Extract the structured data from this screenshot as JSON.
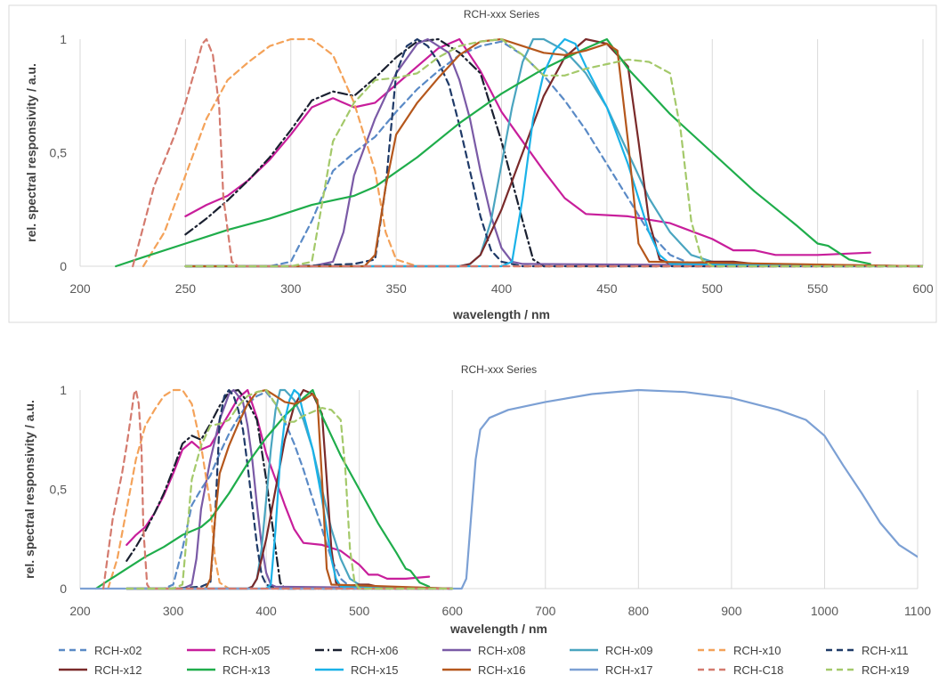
{
  "chart_data": [
    {
      "type": "line",
      "title": "RCH-xxx Series",
      "xlabel": "wavelength / nm",
      "ylabel": "rel. spectral responsivity / a.u.",
      "xlim": [
        200,
        600
      ],
      "ylim": [
        0,
        1
      ],
      "x_ticks": [
        "200",
        "250",
        "300",
        "350",
        "400",
        "450",
        "500",
        "550",
        "600"
      ],
      "y_ticks": [
        "0",
        "0,5",
        "1"
      ],
      "grid": "vertical",
      "legend": "none"
    },
    {
      "type": "line",
      "title": "RCH-xxx Series",
      "xlabel": "wavelength / nm",
      "ylabel": "rel. spectral responsivity / a.u.",
      "xlim": [
        200,
        1100
      ],
      "ylim": [
        0,
        1
      ],
      "x_ticks": [
        "200",
        "300",
        "400",
        "500",
        "600",
        "700",
        "800",
        "900",
        "1000",
        "1100"
      ],
      "y_ticks": [
        "0",
        "0,5",
        "1"
      ],
      "grid": "vertical",
      "legend": "bottom"
    }
  ],
  "series": [
    {
      "name": "RCH-x02",
      "color": "#5a8ac6",
      "dash": "dash",
      "points": [
        [
          250,
          0
        ],
        [
          290,
          0
        ],
        [
          300,
          0.02
        ],
        [
          310,
          0.2
        ],
        [
          320,
          0.42
        ],
        [
          330,
          0.5
        ],
        [
          340,
          0.57
        ],
        [
          350,
          0.68
        ],
        [
          360,
          0.78
        ],
        [
          370,
          0.86
        ],
        [
          380,
          0.93
        ],
        [
          390,
          0.97
        ],
        [
          400,
          0.99
        ],
        [
          410,
          0.93
        ],
        [
          420,
          0.84
        ],
        [
          430,
          0.73
        ],
        [
          440,
          0.6
        ],
        [
          450,
          0.45
        ],
        [
          460,
          0.3
        ],
        [
          470,
          0.15
        ],
        [
          480,
          0.05
        ],
        [
          490,
          0.01
        ],
        [
          500,
          0
        ],
        [
          600,
          0
        ]
      ]
    },
    {
      "name": "RCH-x05",
      "color": "#c81e9b",
      "dash": "solid",
      "points": [
        [
          250,
          0.22
        ],
        [
          260,
          0.27
        ],
        [
          270,
          0.31
        ],
        [
          280,
          0.38
        ],
        [
          290,
          0.47
        ],
        [
          300,
          0.58
        ],
        [
          310,
          0.7
        ],
        [
          320,
          0.74
        ],
        [
          330,
          0.7
        ],
        [
          340,
          0.72
        ],
        [
          350,
          0.8
        ],
        [
          360,
          0.88
        ],
        [
          370,
          0.96
        ],
        [
          380,
          1
        ],
        [
          390,
          0.86
        ],
        [
          400,
          0.68
        ],
        [
          410,
          0.55
        ],
        [
          420,
          0.42
        ],
        [
          430,
          0.3
        ],
        [
          440,
          0.23
        ],
        [
          460,
          0.22
        ],
        [
          480,
          0.19
        ],
        [
          500,
          0.12
        ],
        [
          510,
          0.07
        ],
        [
          520,
          0.07
        ],
        [
          530,
          0.05
        ],
        [
          550,
          0.05
        ],
        [
          575,
          0.06
        ]
      ]
    },
    {
      "name": "RCH-x06",
      "color": "#1a2030",
      "dash": "dashdot",
      "points": [
        [
          250,
          0.14
        ],
        [
          260,
          0.21
        ],
        [
          270,
          0.29
        ],
        [
          280,
          0.38
        ],
        [
          290,
          0.48
        ],
        [
          300,
          0.6
        ],
        [
          310,
          0.73
        ],
        [
          320,
          0.77
        ],
        [
          330,
          0.75
        ],
        [
          340,
          0.83
        ],
        [
          350,
          0.92
        ],
        [
          360,
          0.99
        ],
        [
          370,
          1
        ],
        [
          380,
          0.94
        ],
        [
          390,
          0.85
        ],
        [
          400,
          0.55
        ],
        [
          410,
          0.2
        ],
        [
          415,
          0.03
        ],
        [
          420,
          0
        ],
        [
          600,
          0
        ]
      ]
    },
    {
      "name": "RCH-x08",
      "color": "#7a5aa6",
      "dash": "solid",
      "points": [
        [
          250,
          0
        ],
        [
          310,
          0
        ],
        [
          320,
          0.02
        ],
        [
          325,
          0.15
        ],
        [
          330,
          0.4
        ],
        [
          340,
          0.65
        ],
        [
          350,
          0.85
        ],
        [
          360,
          0.98
        ],
        [
          365,
          1
        ],
        [
          375,
          0.94
        ],
        [
          380,
          0.82
        ],
        [
          385,
          0.65
        ],
        [
          390,
          0.42
        ],
        [
          395,
          0.22
        ],
        [
          400,
          0.08
        ],
        [
          405,
          0.02
        ],
        [
          410,
          0.01
        ],
        [
          600,
          0
        ]
      ]
    },
    {
      "name": "RCH-x09",
      "color": "#4aa5c0",
      "dash": "solid",
      "points": [
        [
          250,
          0
        ],
        [
          380,
          0
        ],
        [
          385,
          0.01
        ],
        [
          390,
          0.05
        ],
        [
          395,
          0.2
        ],
        [
          400,
          0.45
        ],
        [
          405,
          0.7
        ],
        [
          410,
          0.9
        ],
        [
          415,
          1
        ],
        [
          420,
          1
        ],
        [
          430,
          0.95
        ],
        [
          440,
          0.85
        ],
        [
          450,
          0.7
        ],
        [
          460,
          0.5
        ],
        [
          470,
          0.3
        ],
        [
          480,
          0.15
        ],
        [
          490,
          0.05
        ],
        [
          500,
          0.02
        ],
        [
          510,
          0.01
        ],
        [
          600,
          0
        ]
      ]
    },
    {
      "name": "RCH-x10",
      "color": "#f4a259",
      "dash": "dash",
      "points": [
        [
          230,
          0
        ],
        [
          240,
          0.15
        ],
        [
          250,
          0.4
        ],
        [
          260,
          0.65
        ],
        [
          270,
          0.82
        ],
        [
          280,
          0.9
        ],
        [
          290,
          0.97
        ],
        [
          300,
          1
        ],
        [
          310,
          1
        ],
        [
          320,
          0.93
        ],
        [
          330,
          0.72
        ],
        [
          340,
          0.42
        ],
        [
          345,
          0.15
        ],
        [
          350,
          0.03
        ],
        [
          360,
          0
        ],
        [
          600,
          0
        ]
      ]
    },
    {
      "name": "RCH-x11",
      "color": "#1f3a68",
      "dash": "dash",
      "points": [
        [
          250,
          0
        ],
        [
          300,
          0
        ],
        [
          330,
          0.01
        ],
        [
          340,
          0.03
        ],
        [
          345,
          0.35
        ],
        [
          350,
          0.85
        ],
        [
          355,
          0.97
        ],
        [
          360,
          1
        ],
        [
          365,
          0.97
        ],
        [
          370,
          0.9
        ],
        [
          375,
          0.8
        ],
        [
          380,
          0.62
        ],
        [
          385,
          0.42
        ],
        [
          390,
          0.22
        ],
        [
          395,
          0.07
        ],
        [
          400,
          0.02
        ],
        [
          410,
          0
        ],
        [
          600,
          0
        ]
      ]
    },
    {
      "name": "RCH-x12",
      "color": "#7a2a2a",
      "dash": "solid",
      "points": [
        [
          250,
          0
        ],
        [
          380,
          0
        ],
        [
          385,
          0.01
        ],
        [
          390,
          0.05
        ],
        [
          400,
          0.25
        ],
        [
          410,
          0.5
        ],
        [
          420,
          0.75
        ],
        [
          430,
          0.92
        ],
        [
          440,
          1
        ],
        [
          450,
          0.98
        ],
        [
          460,
          0.88
        ],
        [
          465,
          0.55
        ],
        [
          470,
          0.2
        ],
        [
          475,
          0.03
        ],
        [
          480,
          0.01
        ],
        [
          500,
          0.02
        ],
        [
          510,
          0.02
        ],
        [
          520,
          0.01
        ],
        [
          600,
          0
        ]
      ]
    },
    {
      "name": "RCH-x13",
      "color": "#1fad4b",
      "dash": "solid",
      "points": [
        [
          217,
          0
        ],
        [
          230,
          0.04
        ],
        [
          250,
          0.1
        ],
        [
          270,
          0.16
        ],
        [
          290,
          0.21
        ],
        [
          310,
          0.27
        ],
        [
          330,
          0.31
        ],
        [
          340,
          0.35
        ],
        [
          360,
          0.48
        ],
        [
          380,
          0.63
        ],
        [
          400,
          0.76
        ],
        [
          420,
          0.87
        ],
        [
          440,
          0.96
        ],
        [
          450,
          1
        ],
        [
          460,
          0.87
        ],
        [
          480,
          0.67
        ],
        [
          500,
          0.5
        ],
        [
          520,
          0.33
        ],
        [
          540,
          0.18
        ],
        [
          550,
          0.1
        ],
        [
          555,
          0.09
        ],
        [
          565,
          0.03
        ],
        [
          575,
          0.01
        ]
      ]
    },
    {
      "name": "RCH-x15",
      "color": "#1ab2e8",
      "dash": "solid",
      "points": [
        [
          250,
          0
        ],
        [
          400,
          0
        ],
        [
          405,
          0.02
        ],
        [
          410,
          0.3
        ],
        [
          415,
          0.65
        ],
        [
          420,
          0.85
        ],
        [
          425,
          0.95
        ],
        [
          430,
          1
        ],
        [
          435,
          0.98
        ],
        [
          440,
          0.88
        ],
        [
          450,
          0.7
        ],
        [
          460,
          0.45
        ],
        [
          470,
          0.15
        ],
        [
          475,
          0.05
        ],
        [
          480,
          0.01
        ],
        [
          600,
          0
        ]
      ]
    },
    {
      "name": "RCH-x16",
      "color": "#b5571c",
      "dash": "solid",
      "points": [
        [
          250,
          0
        ],
        [
          335,
          0
        ],
        [
          340,
          0.05
        ],
        [
          345,
          0.35
        ],
        [
          350,
          0.58
        ],
        [
          360,
          0.72
        ],
        [
          370,
          0.83
        ],
        [
          380,
          0.93
        ],
        [
          390,
          0.99
        ],
        [
          400,
          1
        ],
        [
          410,
          0.97
        ],
        [
          420,
          0.94
        ],
        [
          430,
          0.93
        ],
        [
          440,
          0.95
        ],
        [
          450,
          0.98
        ],
        [
          455,
          0.95
        ],
        [
          460,
          0.55
        ],
        [
          465,
          0.1
        ],
        [
          470,
          0.02
        ],
        [
          600,
          0
        ]
      ]
    },
    {
      "name": "RCH-x17",
      "color": "#7ca0d4",
      "dash": "solid",
      "points": [
        [
          200,
          0
        ],
        [
          610,
          0
        ],
        [
          615,
          0.05
        ],
        [
          620,
          0.35
        ],
        [
          625,
          0.65
        ],
        [
          630,
          0.8
        ],
        [
          640,
          0.86
        ],
        [
          660,
          0.9
        ],
        [
          700,
          0.94
        ],
        [
          750,
          0.98
        ],
        [
          800,
          1
        ],
        [
          850,
          0.99
        ],
        [
          900,
          0.96
        ],
        [
          950,
          0.9
        ],
        [
          980,
          0.85
        ],
        [
          1000,
          0.77
        ],
        [
          1020,
          0.62
        ],
        [
          1040,
          0.48
        ],
        [
          1060,
          0.33
        ],
        [
          1080,
          0.22
        ],
        [
          1100,
          0.16
        ]
      ]
    },
    {
      "name": "RCH-C18",
      "color": "#d47a6e",
      "dash": "dash",
      "points": [
        [
          225,
          0
        ],
        [
          235,
          0.35
        ],
        [
          245,
          0.58
        ],
        [
          250,
          0.72
        ],
        [
          255,
          0.88
        ],
        [
          258,
          0.98
        ],
        [
          260,
          1
        ],
        [
          263,
          0.93
        ],
        [
          266,
          0.7
        ],
        [
          268,
          0.3
        ],
        [
          272,
          0.02
        ],
        [
          275,
          0
        ],
        [
          600,
          0
        ]
      ]
    },
    {
      "name": "RCH-x19",
      "color": "#a4c96a",
      "dash": "dash",
      "points": [
        [
          250,
          0
        ],
        [
          300,
          0
        ],
        [
          310,
          0.02
        ],
        [
          320,
          0.55
        ],
        [
          330,
          0.72
        ],
        [
          340,
          0.82
        ],
        [
          350,
          0.83
        ],
        [
          360,
          0.85
        ],
        [
          370,
          0.92
        ],
        [
          380,
          0.97
        ],
        [
          390,
          0.99
        ],
        [
          400,
          1
        ],
        [
          410,
          0.93
        ],
        [
          420,
          0.84
        ],
        [
          430,
          0.84
        ],
        [
          440,
          0.87
        ],
        [
          450,
          0.89
        ],
        [
          460,
          0.91
        ],
        [
          470,
          0.9
        ],
        [
          480,
          0.85
        ],
        [
          485,
          0.6
        ],
        [
          490,
          0.2
        ],
        [
          495,
          0.03
        ],
        [
          500,
          0
        ],
        [
          600,
          0
        ]
      ]
    }
  ]
}
